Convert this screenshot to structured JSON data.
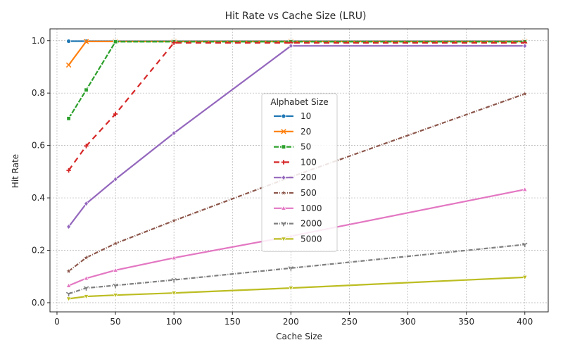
{
  "chart_data": {
    "type": "line",
    "title": "Hit Rate vs Cache Size (LRU)",
    "xlabel": "Cache Size",
    "ylabel": "Hit Rate",
    "xlim": [
      -6,
      420
    ],
    "ylim": [
      -0.035,
      1.045
    ],
    "xticks": [
      0,
      50,
      100,
      150,
      200,
      250,
      300,
      350,
      400
    ],
    "yticks": [
      0.0,
      0.2,
      0.4,
      0.6,
      0.8,
      1.0
    ],
    "grid": true,
    "legend": {
      "title": "Alphabet Size",
      "placement": "center"
    },
    "x": [
      10,
      25,
      50,
      100,
      200,
      400
    ],
    "series": [
      {
        "name": "10",
        "color": "#1f77b4",
        "marker": "circle",
        "dash": "",
        "values": [
          0.998,
          0.998,
          0.998,
          0.998,
          0.998,
          0.998
        ]
      },
      {
        "name": "20",
        "color": "#ff7f0e",
        "marker": "x",
        "dash": "",
        "values": [
          0.907,
          0.997,
          0.997,
          0.997,
          0.997,
          0.997
        ]
      },
      {
        "name": "50",
        "color": "#2ca02c",
        "marker": "square",
        "dash": "7,2",
        "values": [
          0.703,
          0.812,
          0.996,
          0.996,
          0.996,
          0.996
        ]
      },
      {
        "name": "100",
        "color": "#d62728",
        "marker": "plus",
        "dash": "8,6",
        "values": [
          0.505,
          0.598,
          0.72,
          0.992,
          0.992,
          0.992
        ]
      },
      {
        "name": "200",
        "color": "#9467bd",
        "marker": "diamond",
        "dash": "",
        "values": [
          0.29,
          0.378,
          0.471,
          0.647,
          0.98,
          0.98
        ]
      },
      {
        "name": "500",
        "color": "#8c564b",
        "marker": "star",
        "dash": "6,2,1,2",
        "values": [
          0.12,
          0.172,
          0.226,
          0.313,
          0.48,
          0.797
        ]
      },
      {
        "name": "1000",
        "color": "#e377c2",
        "marker": "triangle-up",
        "dash": "",
        "values": [
          0.065,
          0.093,
          0.124,
          0.171,
          0.254,
          0.432
        ]
      },
      {
        "name": "2000",
        "color": "#7f7f7f",
        "marker": "y",
        "dash": "6,2,1,2",
        "values": [
          0.034,
          0.056,
          0.066,
          0.087,
          0.132,
          0.222
        ]
      },
      {
        "name": "5000",
        "color": "#bcbd22",
        "marker": "triangle-down",
        "dash": "",
        "values": [
          0.015,
          0.024,
          0.029,
          0.037,
          0.056,
          0.097
        ]
      }
    ]
  }
}
